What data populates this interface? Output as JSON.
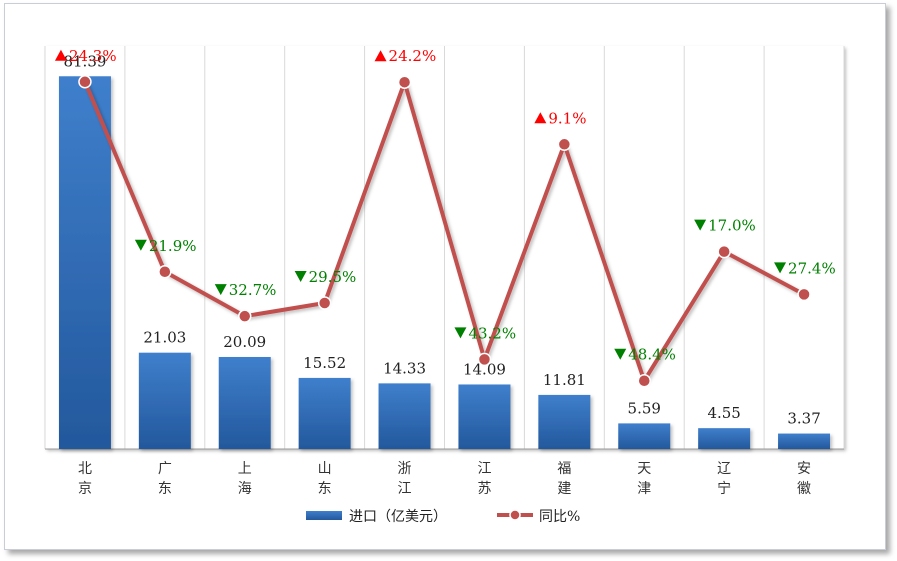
{
  "chart_data": {
    "type": "bar",
    "categories": [
      "北京",
      "广东",
      "上海",
      "山东",
      "浙江",
      "江苏",
      "福建",
      "天津",
      "辽宁",
      "安徽"
    ],
    "series": [
      {
        "name": "进口（亿美元）",
        "type": "bar",
        "values": [
          81.39,
          21.03,
          20.09,
          15.52,
          14.33,
          14.09,
          11.81,
          5.59,
          4.55,
          3.37
        ],
        "labels": [
          "81.39",
          "21.03",
          "20.09",
          "15.52",
          "14.33",
          "14.09",
          "11.81",
          "5.59",
          "4.55",
          "3.37"
        ],
        "color": "#2f6db8"
      },
      {
        "name": "同比%",
        "type": "line",
        "values": [
          24.3,
          -21.9,
          -32.7,
          -29.5,
          24.2,
          -43.2,
          9.1,
          -48.4,
          -17.0,
          -27.4
        ],
        "labels": [
          "24.3%",
          "21.9%",
          "32.7%",
          "29.5%",
          "24.2%",
          "43.2%",
          "9.1%",
          "48.4%",
          "17.0%",
          "27.4%"
        ],
        "color": "#c0504d",
        "up_color": "#ff0000",
        "down_color": "#008000"
      }
    ],
    "bar_ylim": [
      0,
      88
    ],
    "line_ylim": [
      -65,
      33
    ],
    "grid": "vertical",
    "legend_placement": "bottom-center"
  }
}
